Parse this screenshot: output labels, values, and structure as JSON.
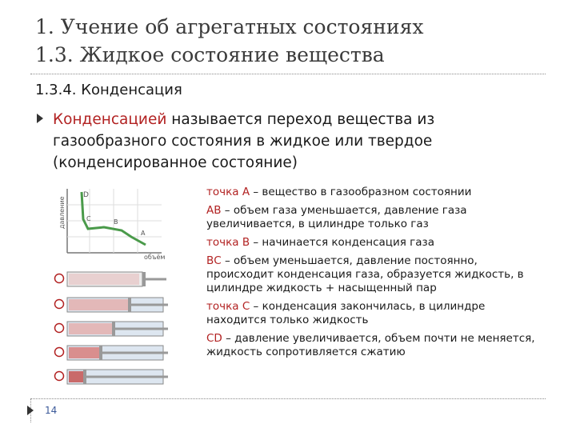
{
  "title": {
    "line1": "1. Учение об агрегатных состояниях",
    "line2": "1.3. Жидкое состояние вещества"
  },
  "subheading": "1.3.4. Конденсация",
  "bullet": {
    "term": "Конденсацией",
    "text": " называется переход вещества из газообразного состояния в жидкое или твердое (конденсированное состояние)"
  },
  "figure": {
    "ylabel": "давление",
    "xlabel": "объём",
    "points": [
      "D",
      "C",
      "B",
      "A"
    ]
  },
  "notes": [
    {
      "key": "точка А",
      "text": " – вещество в газообразном состоянии"
    },
    {
      "key": "АВ",
      "text": " – объем газа уменьшается, давление газа увеличивается,  в цилиндре только газ"
    },
    {
      "key": "точка В",
      "text": " – начинается конденсация газа"
    },
    {
      "key": "ВС",
      "text": " – объем уменьшается, давление постоянно, происходит конденсация газа, образуется жидкость, в цилиндре жидкость + насыщенный пар"
    },
    {
      "key": "точка С",
      "text": " – конденсация закончилась, в цилиндре находится только жидкость"
    },
    {
      "key": "СD",
      "text": " – давление увеличивается, объем почти не меняется, жидкость сопротивляется сжатию"
    }
  ],
  "page_number": "14",
  "colors": {
    "accent": "#b22222",
    "curve": "#4a9a4a",
    "title": "#3b3b3b"
  }
}
